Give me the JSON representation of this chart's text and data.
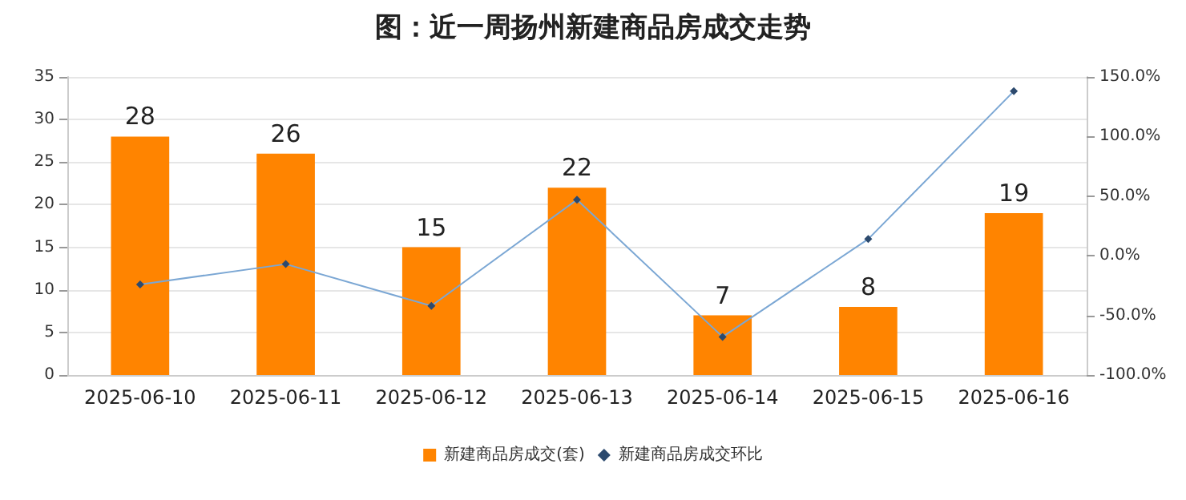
{
  "chart_data": {
    "type": "bar",
    "title": "图：近一周扬州新建商品房成交走势",
    "categories": [
      "2025-06-10",
      "2025-06-11",
      "2025-06-12",
      "2025-06-13",
      "2025-06-14",
      "2025-06-15",
      "2025-06-16"
    ],
    "series": [
      {
        "name": "新建商品房成交(套)",
        "color": "#ff8400",
        "values": [
          28,
          26,
          15,
          22,
          7,
          8,
          19
        ],
        "data_labels": true
      },
      {
        "name": "新建商品房成交环比",
        "type": "line",
        "axis": "y2",
        "color": "#7ba7d4",
        "marker": "diamond",
        "values": [
          -24,
          -7,
          -42,
          47,
          -68,
          14,
          138
        ]
      }
    ],
    "ylim": [
      0,
      35
    ],
    "yticks": [
      0,
      5,
      10,
      15,
      20,
      25,
      30,
      35
    ],
    "y2lim": [
      -100,
      150
    ],
    "y2ticks": [
      {
        "value": -100,
        "label": "-100.0%"
      },
      {
        "value": -50,
        "label": "-50.0%"
      },
      {
        "value": 0,
        "label": "0.0%"
      },
      {
        "value": 50,
        "label": "50.0%"
      },
      {
        "value": 100,
        "label": "100.0%"
      },
      {
        "value": 150,
        "label": "150.0%"
      }
    ],
    "grid": "y",
    "legend": "bottom"
  }
}
